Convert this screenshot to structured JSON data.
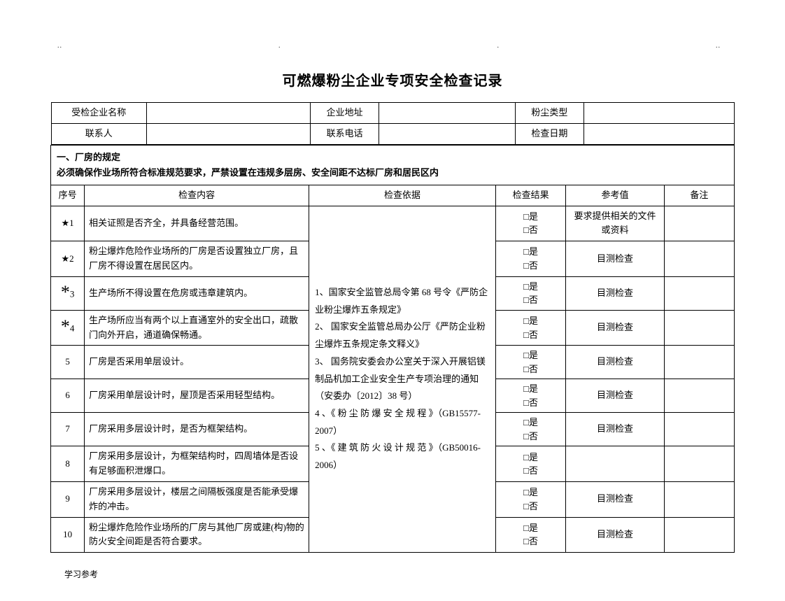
{
  "dots": [
    "..",
    ".",
    ".",
    ".."
  ],
  "title": "可燃爆粉尘企业专项安全检查记录",
  "header_fields": {
    "f1_label": "受检企业名称",
    "f2_label": "企业地址",
    "f3_label": "粉尘类型",
    "f4_label": "联系人",
    "f5_label": "联系电话",
    "f6_label": "检查日期"
  },
  "section": {
    "line1": "一、厂房的规定",
    "line2": "必须确保作业场所符合标准规范要求，严禁设置在违规多层房、安全间距不达标厂房和居民区内"
  },
  "columns": {
    "c1": "序号",
    "c2": "检查内容",
    "c3": "检查依据",
    "c4": "检查结果",
    "c5": "参考值",
    "c6": "备注"
  },
  "basis_text": "1、国家安全监管总局令第 68 号令《严防企业粉尘爆炸五条规定》\n2、 国家安全监管总局办公厅《严防企业粉尘爆炸五条规定条文释义》\n3、 国务院安委会办公室关于深入开展铝镁制品机加工企业安全生产专项治理的通知（安委办〔2012〕38 号）\n4 、《 粉 尘 防 爆 安 全 规 程 》（GB15577-2007）\n5 、《 建 筑 防 火 设 计 规 范 》（GB50016-2006）",
  "result_text": "□是\n□否",
  "rows": [
    {
      "seq": "★1",
      "content": "相关证照是否齐全，并具备经营范围。",
      "ref": "要求提供相关的文件或资料"
    },
    {
      "seq": "★2",
      "content": "粉尘爆炸危险作业场所的厂房是否设置独立厂房，且厂房不得设置在居民区内。",
      "ref": "目测检查"
    },
    {
      "seq": "*3",
      "content": "生产场所不得设置在危房或违章建筑内。",
      "ref": "目测检查"
    },
    {
      "seq": "*4",
      "content": "生产场所应当有两个以上直通室外的安全出口，疏散门向外开启，通道确保畅通。",
      "ref": "目测检查"
    },
    {
      "seq": "5",
      "content": "厂房是否采用单层设计。",
      "ref": "目测检查"
    },
    {
      "seq": "6",
      "content": "厂房采用单层设计时，屋顶是否采用轻型结构。",
      "ref": "目测检查"
    },
    {
      "seq": "7",
      "content": "厂房采用多层设计时，是否为框架结构。",
      "ref": "目测检查"
    },
    {
      "seq": "8",
      "content": "厂房采用多层设计，为框架结构时，四周墙体是否设有足够面积泄爆口。",
      "ref": ""
    },
    {
      "seq": "9",
      "content": "厂房采用多层设计，楼层之间隔板强度是否能承受爆炸的冲击。",
      "ref": "目测检查"
    },
    {
      "seq": "10",
      "content": "粉尘爆炸危险作业场所的厂房与其他厂房或建(构)物的防火安全间距是否符合要求。",
      "ref": "目测检查"
    }
  ],
  "footer": "学习参考",
  "colwidths": {
    "seq": 48,
    "content": 320,
    "basis": 266,
    "result": 100,
    "ref": 140,
    "note": 100
  },
  "seq_styles": {
    "star_prefix_fontsize": 13,
    "asterisk_fontsize": 26,
    "default_fontsize": 13
  }
}
